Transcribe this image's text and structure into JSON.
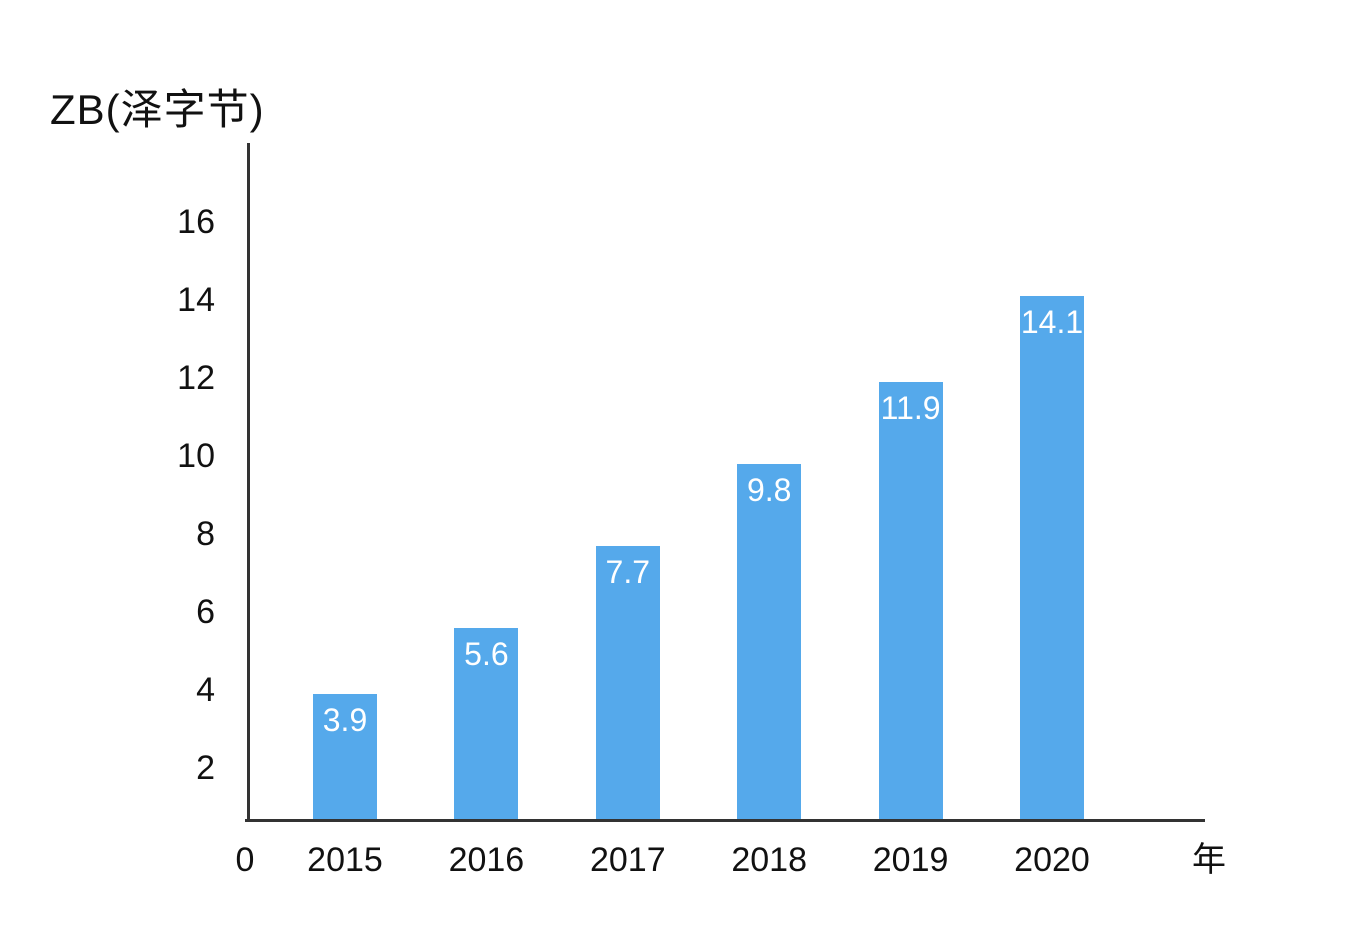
{
  "title": "ZB(泽字节)",
  "axis": {
    "origin_label": "0"
  },
  "colors": {
    "bar": "#55A9EB",
    "axis_line": "#333333",
    "text": "#111111",
    "bar_label": "#ffffff",
    "background": "#ffffff"
  },
  "chart_data": {
    "type": "bar",
    "title": "ZB(泽字节)",
    "ylabel": "ZB(泽字节)",
    "xlabel": "年",
    "categories": [
      "2015",
      "2016",
      "2017",
      "2018",
      "2019",
      "2020"
    ],
    "values": [
      3.9,
      5.6,
      7.7,
      9.8,
      11.9,
      14.1
    ],
    "data_labels": [
      "3.9",
      "5.6",
      "7.7",
      "9.8",
      "11.9",
      "14.1"
    ],
    "data_label_position": "inside-top",
    "y_ticks": [
      2,
      4,
      6,
      8,
      10,
      12,
      14,
      16
    ],
    "ylim": [
      0,
      17.5
    ],
    "grid": false,
    "legend_position": "none",
    "origin_tick": "0"
  }
}
